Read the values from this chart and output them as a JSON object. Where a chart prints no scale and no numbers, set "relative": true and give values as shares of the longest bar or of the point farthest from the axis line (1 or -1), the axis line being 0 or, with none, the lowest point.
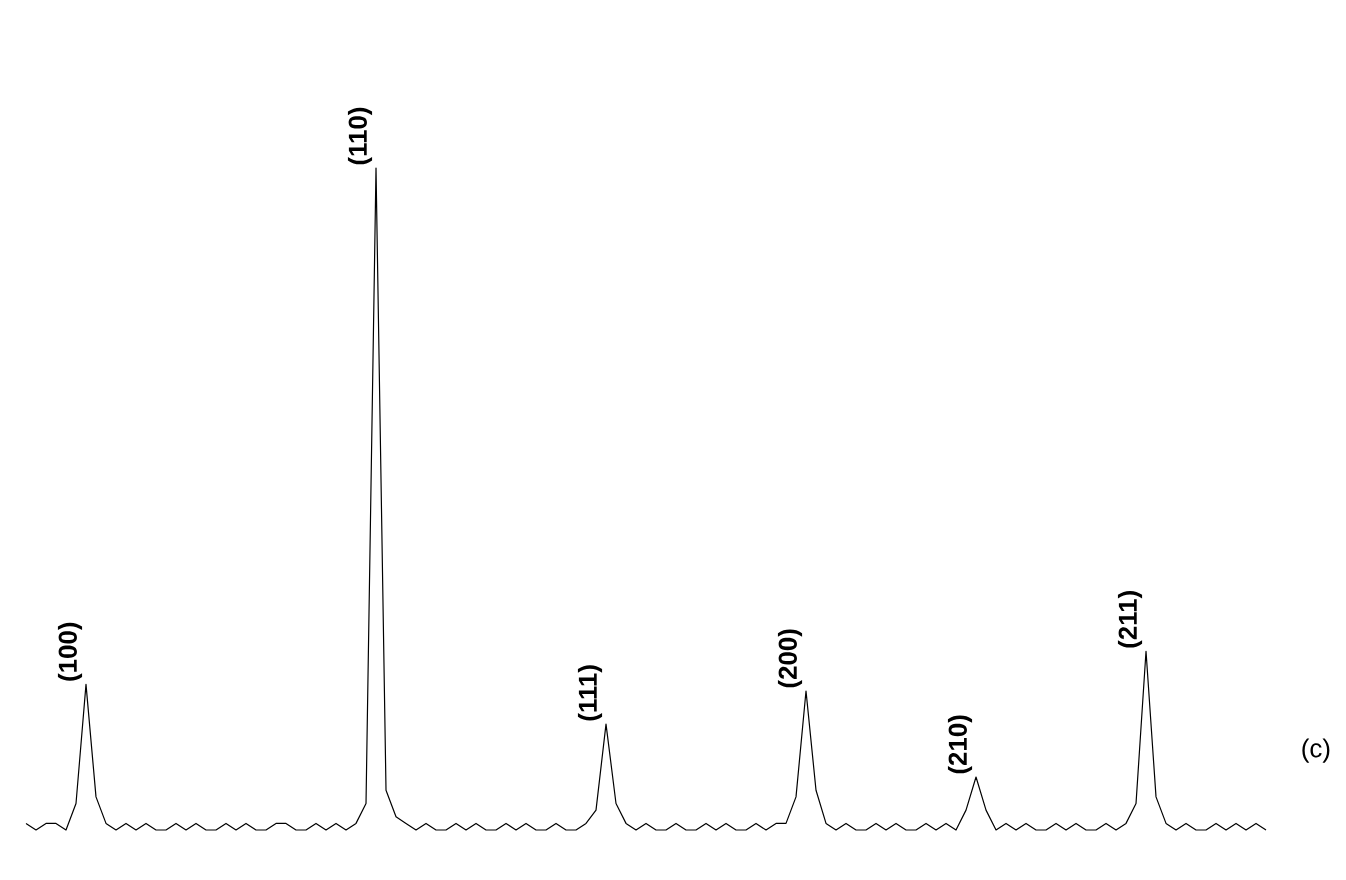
{
  "chart_data": {
    "type": "line",
    "relative": true,
    "color": "#000000",
    "categories": [
      null,
      null,
      null,
      null,
      null,
      null,
      null,
      null,
      null,
      null,
      null,
      null,
      null,
      null,
      null,
      null,
      null,
      null,
      null,
      null,
      null,
      null,
      null,
      null,
      null,
      null,
      null,
      null,
      null,
      null,
      null,
      null,
      null,
      null,
      null,
      null,
      null,
      null,
      null,
      null,
      null,
      null,
      null,
      null,
      null,
      null,
      null,
      null,
      null,
      null,
      null,
      null,
      null,
      null,
      null,
      null,
      null,
      null,
      null,
      null,
      null,
      null,
      null,
      null,
      null,
      null,
      null,
      null,
      null,
      null,
      null,
      null,
      null,
      null,
      null,
      null,
      null,
      null,
      null,
      null,
      null,
      null,
      null,
      null,
      null,
      null,
      null,
      null,
      null,
      null,
      null,
      null,
      null,
      null,
      null,
      null,
      null,
      null,
      null,
      null,
      null,
      null,
      null,
      null,
      null,
      null,
      null,
      null,
      null,
      null,
      null,
      null,
      null,
      null,
      null,
      null,
      null,
      null,
      null,
      null,
      null,
      null,
      null,
      null,
      null
    ],
    "values": [
      0.01,
      0.0,
      0.01,
      0.01,
      0.0,
      0.04,
      0.22,
      0.05,
      0.01,
      0.0,
      0.01,
      0.0,
      0.01,
      0.0,
      0.0,
      0.01,
      0.0,
      0.01,
      0.0,
      0.0,
      0.01,
      0.0,
      0.01,
      0.0,
      0.0,
      0.01,
      0.01,
      0.0,
      0.0,
      0.01,
      0.0,
      0.01,
      0.0,
      0.01,
      0.04,
      1,
      0.06,
      0.02,
      0.01,
      0.0,
      0.01,
      0.0,
      0.0,
      0.01,
      0.0,
      0.01,
      0.0,
      0.0,
      0.01,
      0.0,
      0.01,
      0.0,
      0.0,
      0.01,
      0.0,
      0.0,
      0.01,
      0.03,
      0.16,
      0.04,
      0.01,
      0.0,
      0.01,
      0.0,
      0.0,
      0.01,
      0.0,
      0.0,
      0.01,
      0.0,
      0.01,
      0.0,
      0.0,
      0.01,
      0.0,
      0.01,
      0.01,
      0.05,
      0.21,
      0.06,
      0.01,
      0.0,
      0.01,
      0.0,
      0.0,
      0.01,
      0.0,
      0.01,
      0.0,
      0.0,
      0.01,
      0.0,
      0.01,
      0.0,
      0.03,
      0.08,
      0.03,
      0.0,
      0.01,
      0.0,
      0.01,
      0.0,
      0.0,
      0.01,
      0.0,
      0.01,
      0.0,
      0.0,
      0.01,
      0.0,
      0.01,
      0.04,
      0.27,
      0.05,
      0.01,
      0.0,
      0.01,
      0.0,
      0.0,
      0.01,
      0.0,
      0.01,
      0.0,
      0.01,
      0.0
    ],
    "annotations": [
      "(100)",
      "(110)",
      "(111)",
      "(200)",
      "(210)",
      "(211)",
      "(c)"
    ],
    "marker": "none",
    "line_style": "solid"
  }
}
